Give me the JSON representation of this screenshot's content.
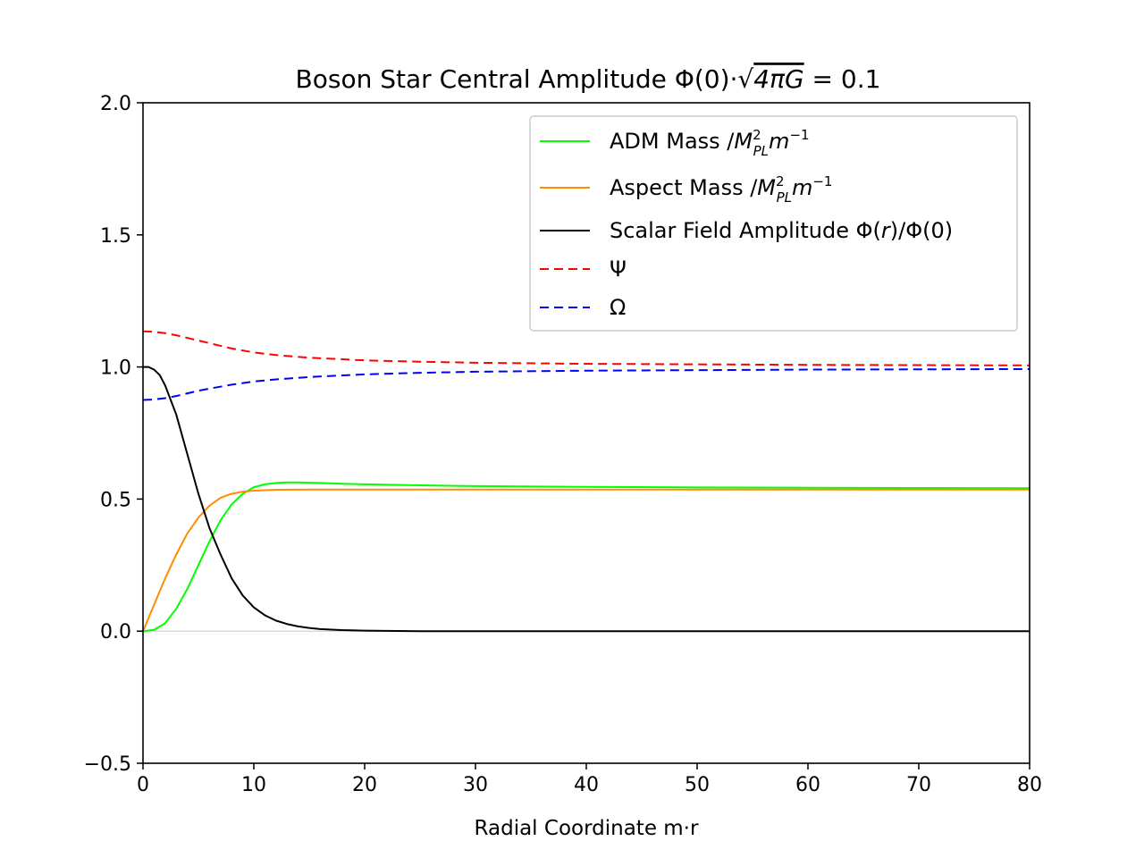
{
  "chart_data": {
    "type": "line",
    "title": "Boson Star Central Amplitude Φ(0)·√4πG = 0.1",
    "title_parts": {
      "prefix": "Boson Star Central Amplitude Φ(0)·",
      "radical": "√",
      "radicand": "4πG",
      "suffix": " = 0.1"
    },
    "xlabel": "Radial Coordinate m·r",
    "ylabel": "",
    "xlim": [
      0,
      80
    ],
    "ylim": [
      -0.5,
      2.0
    ],
    "xticks": [
      0,
      10,
      20,
      30,
      40,
      50,
      60,
      70,
      80
    ],
    "xtick_labels": [
      "0",
      "10",
      "20",
      "30",
      "40",
      "50",
      "60",
      "70",
      "80"
    ],
    "yticks": [
      -0.5,
      0.0,
      0.5,
      1.0,
      1.5,
      2.0
    ],
    "ytick_labels": [
      "−0.5",
      "0.0",
      "0.5",
      "1.0",
      "1.5",
      "2.0"
    ],
    "zero_line": true,
    "legend_position": "upper right",
    "series": [
      {
        "name": "ADM Mass /M_PL^2 m^-1",
        "legend": {
          "text": "ADM Mass /",
          "M": "M",
          "sup": "2",
          "sub": "PL",
          "m": "m",
          "exp": "−1"
        },
        "color": "#00ff00",
        "style": "solid",
        "x": [
          0,
          1,
          2,
          3,
          4,
          5,
          6,
          7,
          8,
          9,
          10,
          11,
          12,
          13,
          14,
          15,
          16,
          18,
          20,
          25,
          30,
          40,
          50,
          60,
          70,
          80
        ],
        "y": [
          0,
          0.005,
          0.03,
          0.085,
          0.16,
          0.25,
          0.34,
          0.42,
          0.48,
          0.52,
          0.545,
          0.556,
          0.561,
          0.563,
          0.563,
          0.562,
          0.561,
          0.558,
          0.556,
          0.552,
          0.549,
          0.546,
          0.544,
          0.543,
          0.542,
          0.541
        ]
      },
      {
        "name": "Aspect Mass /M_PL^2 m^-1",
        "legend": {
          "text": "Aspect Mass /",
          "M": "M",
          "sup": "2",
          "sub": "PL",
          "m": "m",
          "exp": "−1"
        },
        "color": "#ff8c00",
        "style": "solid",
        "x": [
          0,
          1,
          2,
          3,
          4,
          5,
          6,
          7,
          8,
          9,
          10,
          12,
          15,
          20,
          30,
          40,
          50,
          60,
          70,
          80
        ],
        "y": [
          0,
          0.1,
          0.2,
          0.29,
          0.37,
          0.43,
          0.475,
          0.505,
          0.52,
          0.528,
          0.532,
          0.535,
          0.536,
          0.536,
          0.536,
          0.536,
          0.536,
          0.536,
          0.536,
          0.536
        ]
      },
      {
        "name": "Scalar Field Amplitude Φ(r)/Φ(0)",
        "legend": {
          "text": "Scalar Field Amplitude Φ(",
          "r": "r",
          "end": ")/Φ(0)"
        },
        "color": "#000000",
        "style": "solid",
        "x": [
          0,
          0.5,
          1,
          1.5,
          2,
          3,
          4,
          5,
          6,
          7,
          8,
          9,
          10,
          11,
          12,
          13,
          14,
          15,
          16,
          18,
          20,
          22,
          25,
          30,
          40,
          50,
          60,
          70,
          80
        ],
        "y": [
          1.0,
          1.0,
          0.99,
          0.97,
          0.93,
          0.82,
          0.67,
          0.52,
          0.39,
          0.29,
          0.2,
          0.135,
          0.09,
          0.06,
          0.04,
          0.027,
          0.018,
          0.012,
          0.008,
          0.004,
          0.002,
          0.001,
          0.0,
          0.0,
          0.0,
          0.0,
          0.0,
          0.0,
          0.0
        ]
      },
      {
        "name": "Ψ",
        "legend": {
          "text": "Ψ"
        },
        "color": "#ff0000",
        "style": "dashed",
        "x": [
          0,
          1,
          2,
          3,
          4,
          5,
          6,
          8,
          10,
          12,
          15,
          20,
          25,
          30,
          40,
          50,
          60,
          70,
          80
        ],
        "y": [
          1.135,
          1.133,
          1.128,
          1.12,
          1.11,
          1.1,
          1.09,
          1.07,
          1.055,
          1.045,
          1.035,
          1.025,
          1.02,
          1.016,
          1.012,
          1.01,
          1.008,
          1.007,
          1.006
        ]
      },
      {
        "name": "Ω",
        "legend": {
          "text": "Ω"
        },
        "color": "#0000ff",
        "style": "dashed",
        "x": [
          0,
          1,
          2,
          3,
          4,
          5,
          6,
          8,
          10,
          12,
          15,
          20,
          25,
          30,
          40,
          50,
          60,
          70,
          80
        ],
        "y": [
          0.875,
          0.877,
          0.882,
          0.89,
          0.9,
          0.91,
          0.918,
          0.933,
          0.945,
          0.953,
          0.962,
          0.972,
          0.978,
          0.982,
          0.986,
          0.988,
          0.99,
          0.991,
          0.992
        ]
      }
    ]
  }
}
